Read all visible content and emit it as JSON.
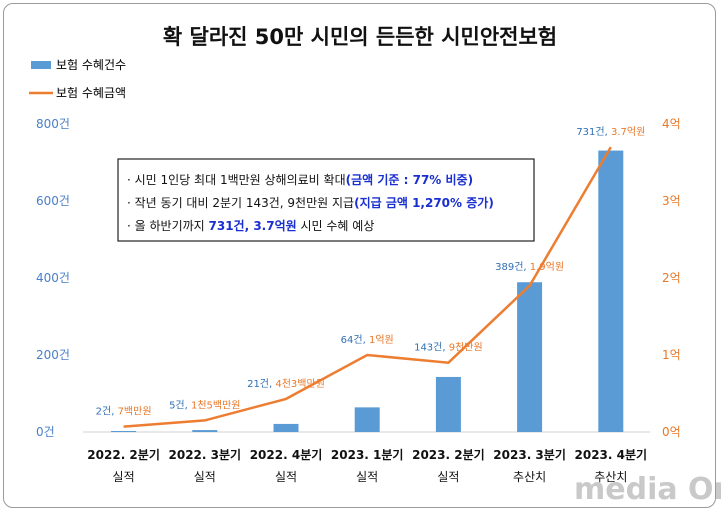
{
  "chart_data": {
    "type": "bar",
    "title": "확 달라진 50만 시민의 든든한 시민안전보험",
    "categories": [
      [
        "2022. 2분기",
        "실적"
      ],
      [
        "2022. 3분기",
        "실적"
      ],
      [
        "2022. 4분기",
        "실적"
      ],
      [
        "2023. 1분기",
        "실적"
      ],
      [
        "2023. 2분기",
        "실적"
      ],
      [
        "2023. 3분기",
        "추산치"
      ],
      [
        "2023. 4분기",
        "추산치"
      ]
    ],
    "series": [
      {
        "name": "보험 수혜건수",
        "kind": "bar",
        "axis": "left",
        "color": "#5b9bd5",
        "values": [
          2,
          5,
          21,
          64,
          143,
          389,
          731
        ],
        "labels": [
          "2건,",
          "5건,",
          "21건,",
          "64건,",
          "143건,",
          "389건,",
          "731건,"
        ]
      },
      {
        "name": "보험 수혜금액",
        "kind": "line",
        "axis": "right",
        "color": "#ed7d31",
        "values": [
          0.07,
          0.15,
          0.43,
          1.0,
          0.9,
          1.9,
          3.7
        ],
        "labels": [
          "7백만원",
          "1천5백만원",
          "4천3백만원",
          "1억원",
          "9천만원",
          "1.9억원",
          "3.7억원"
        ]
      }
    ],
    "y_left": {
      "range": [
        0,
        800
      ],
      "ticks": [
        0,
        200,
        400,
        600,
        800
      ],
      "tick_labels": [
        "0건",
        "200건",
        "400건",
        "600건",
        "800건"
      ]
    },
    "y_right": {
      "range": [
        0,
        4
      ],
      "ticks": [
        0,
        1,
        2,
        3,
        4
      ],
      "tick_labels": [
        "0억",
        "1억",
        "2억",
        "3억",
        "4억"
      ]
    },
    "grid": false,
    "legend_position": "top-left"
  },
  "notes": [
    [
      {
        "text": "· 시민 1인당 최대 1백만원 상해의료비 확대",
        "hl": false
      },
      {
        "text": "(금액 기준 : 77% 비중)",
        "hl": true
      }
    ],
    [
      {
        "text": "· 작년 동기 대비 2분기 143건, 9천만원 지급",
        "hl": false
      },
      {
        "text": "(지급 금액 1,270% 증가)",
        "hl": true
      }
    ],
    [
      {
        "text": "· 올 하반기까지 ",
        "hl": false
      },
      {
        "text": "731건, 3.7억원",
        "hl": true
      },
      {
        "text": " 시민 수혜 예상",
        "hl": false
      }
    ]
  ],
  "watermark": "media On"
}
